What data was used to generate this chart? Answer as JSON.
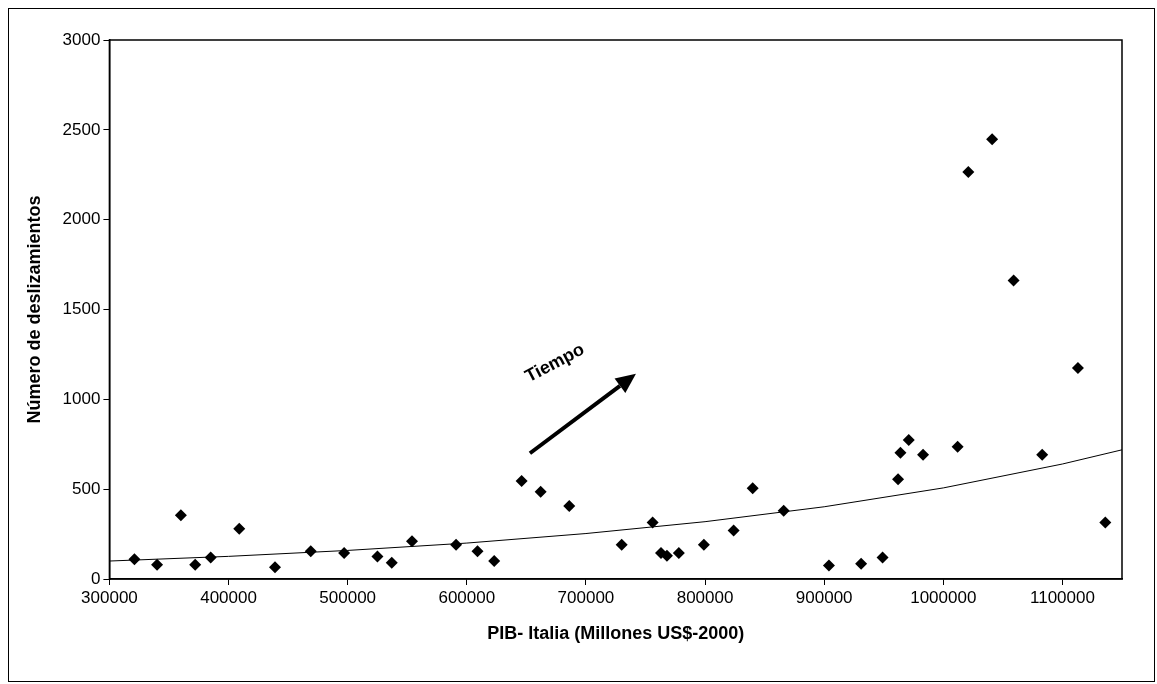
{
  "chart_data": {
    "type": "scatter",
    "xlabel": "PIB- Italia (Millones US$-2000)",
    "ylabel": "Número de deslizamientos",
    "annotations": [
      "Tiempo"
    ],
    "xlim": [
      300000,
      1150000
    ],
    "xticks": [
      300000,
      400000,
      500000,
      600000,
      700000,
      800000,
      900000,
      1000000,
      1100000
    ],
    "ylim": [
      0,
      3000
    ],
    "yticks": [
      0,
      500,
      1000,
      1500,
      2000,
      2500,
      3000
    ],
    "grid": false,
    "legend": false,
    "marker": "diamond",
    "series": [
      {
        "color": "#000000",
        "x": [
          321000,
          340000,
          360000,
          372000,
          385000,
          409000,
          439000,
          469000,
          497000,
          525000,
          537000,
          554000,
          591000,
          609000,
          623000,
          646000,
          662000,
          686000,
          730000,
          756000,
          763000,
          768000,
          778000,
          799000,
          824000,
          840000,
          866000,
          904000,
          931000,
          949000,
          962000,
          964000,
          971000,
          983000,
          1012000,
          1021000,
          1041000,
          1059000,
          1083000,
          1113000,
          1136000
        ],
        "values": [
          110,
          80,
          355,
          80,
          120,
          280,
          65,
          155,
          145,
          125,
          90,
          210,
          190,
          155,
          100,
          546,
          485,
          406,
          190,
          315,
          145,
          130,
          145,
          190,
          270,
          505,
          380,
          75,
          85,
          120,
          555,
          703,
          773,
          691,
          736,
          2265,
          2448,
          1662,
          691,
          1175,
          315
        ]
      },
      {
        "type": "line",
        "color": "#000000",
        "marker": "none",
        "x": [
          300000,
          400000,
          500000,
          600000,
          700000,
          800000,
          900000,
          1000000,
          1100000,
          1150000
        ],
        "values": [
          100,
          126,
          159,
          200,
          253,
          319,
          402,
          507,
          640,
          719
        ]
      }
    ]
  }
}
